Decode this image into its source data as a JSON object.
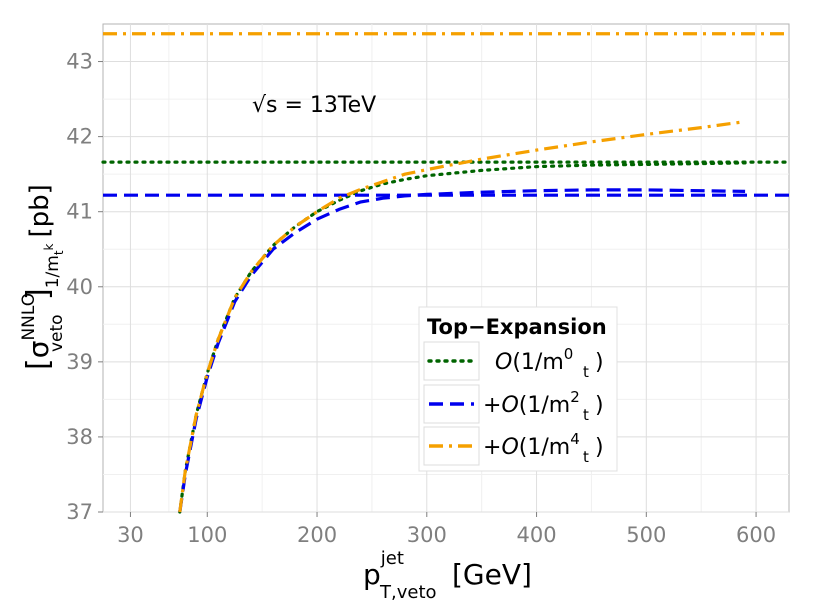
{
  "chart_data": {
    "type": "line",
    "title": "",
    "annotation": {
      "sqrt": "√s",
      "eq": " = ",
      "value": "13TeV"
    },
    "xlabel": {
      "main": "p",
      "sup": "jet",
      "sub": "T,veto",
      "unit": "[GeV]"
    },
    "ylabel": {
      "lbracket": "[",
      "sigma": "σ",
      "sup": "NNLO",
      "sub": "veto",
      "rbracket": "]",
      "sub2": "1/m",
      "sub2_sub": "t",
      "sub2_sup": "k",
      "unit": "[pb]"
    },
    "xlim": [
      5,
      630
    ],
    "ylim": [
      37,
      43.5
    ],
    "x_ticks": [
      30,
      100,
      200,
      300,
      400,
      500,
      600
    ],
    "y_ticks": [
      37,
      38,
      39,
      40,
      41,
      42,
      43
    ],
    "x_minor": [
      65,
      150,
      250,
      350,
      450,
      550
    ],
    "y_minor": [
      37.5,
      38.5,
      39.5,
      40.5,
      41.5,
      42.5
    ],
    "grid": true,
    "legend": {
      "title": "Top−Expansion",
      "placement": "lower-right",
      "entries": [
        {
          "prefix": "",
          "O": "O",
          "open": "(1/m",
          "sub": "t",
          "sup": "0",
          "close": ")"
        },
        {
          "prefix": "+",
          "O": "O",
          "open": "(1/m",
          "sub": "t",
          "sup": "2",
          "close": ")"
        },
        {
          "prefix": "+",
          "O": "O",
          "open": "(1/m",
          "sub": "t",
          "sup": "4",
          "close": ")"
        }
      ]
    },
    "series": [
      {
        "name": "O(1/mt^0)",
        "color": "#006400",
        "style": "dotted",
        "constant": 41.66,
        "x": [
          75,
          80,
          90,
          100,
          110,
          125,
          140,
          160,
          180,
          200,
          220,
          240,
          260,
          280,
          300,
          350,
          400,
          450,
          500,
          550,
          590
        ],
        "y": [
          37.0,
          37.55,
          38.3,
          38.85,
          39.3,
          39.85,
          40.2,
          40.55,
          40.8,
          41.0,
          41.15,
          41.28,
          41.37,
          41.43,
          41.48,
          41.55,
          41.6,
          41.62,
          41.63,
          41.64,
          41.65
        ]
      },
      {
        "name": "O(1/mt^2)",
        "color": "#0000ee",
        "style": "dashed",
        "constant": 41.22,
        "x": [
          75,
          80,
          90,
          100,
          110,
          125,
          140,
          160,
          180,
          200,
          220,
          240,
          260,
          280,
          300,
          350,
          400,
          450,
          500,
          550,
          590
        ],
        "y": [
          37.0,
          37.5,
          38.25,
          38.8,
          39.25,
          39.8,
          40.15,
          40.5,
          40.72,
          40.9,
          41.03,
          41.13,
          41.18,
          41.21,
          41.23,
          41.26,
          41.28,
          41.29,
          41.29,
          41.28,
          41.27
        ]
      },
      {
        "name": "O(1/mt^4)",
        "color": "#f5a000",
        "style": "dashdot",
        "constant": 43.37,
        "x": [
          75,
          80,
          90,
          100,
          110,
          125,
          140,
          160,
          180,
          200,
          220,
          240,
          260,
          280,
          300,
          350,
          400,
          450,
          500,
          550,
          590
        ],
        "y": [
          37.0,
          37.55,
          38.3,
          38.85,
          39.3,
          39.85,
          40.2,
          40.55,
          40.8,
          41.0,
          41.18,
          41.3,
          41.4,
          41.5,
          41.56,
          41.7,
          41.82,
          41.93,
          42.03,
          42.12,
          42.2
        ]
      }
    ]
  }
}
